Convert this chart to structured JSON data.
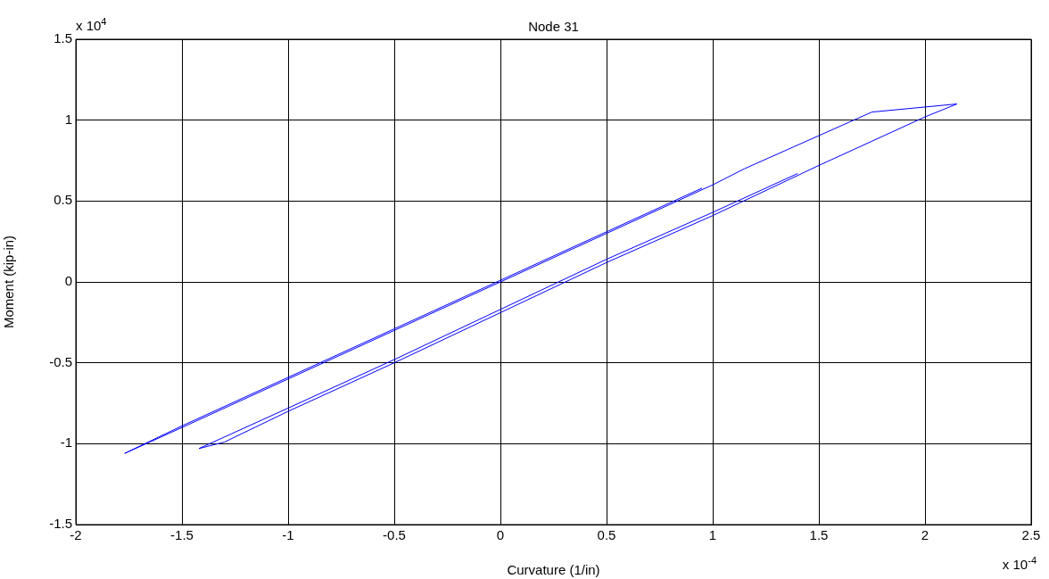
{
  "chart_data": {
    "type": "line",
    "title": "Node 31",
    "xlabel": "Curvature (1/in)",
    "ylabel": "Moment (kip-in)",
    "annotations": [
      "x 10$^{4}$",
      "x 10$^{-4}$"
    ],
    "xlim": [
      -2,
      2.5
    ],
    "xticks": [
      -2,
      -1.5,
      -1,
      -0.5,
      0,
      0.5,
      1,
      1.5,
      2,
      2.5
    ],
    "ylim": [
      -1.5,
      1.5
    ],
    "yticks": [
      -1.5,
      -1,
      -0.5,
      0,
      0.5,
      1,
      1.5
    ],
    "grid": true,
    "line_style": "solid",
    "marker": "none",
    "series": [
      {
        "color": "#0000ff",
        "x": [
          1.4,
          1.0,
          0.5,
          0,
          -0.5,
          -1.0,
          -1.42,
          -1.3,
          -1.0,
          -0.5,
          0,
          0.5,
          1.0,
          1.5,
          2.0,
          2.15,
          1.75,
          1.15,
          1.0,
          0.5,
          0,
          -0.5,
          -1.0,
          -1.5,
          -1.77,
          -1.5,
          -1.0,
          -0.5,
          0,
          0.5,
          0.95
        ],
        "values": [
          0.67,
          0.43,
          0.14,
          -0.17,
          -0.48,
          -0.78,
          -1.03,
          -0.99,
          -0.8,
          -0.5,
          -0.19,
          0.12,
          0.41,
          0.72,
          1.02,
          1.1,
          1.05,
          0.7,
          0.6,
          0.3,
          0,
          -0.3,
          -0.6,
          -0.9,
          -1.06,
          -0.89,
          -0.59,
          -0.29,
          0.01,
          0.31,
          0.58
        ]
      }
    ]
  }
}
